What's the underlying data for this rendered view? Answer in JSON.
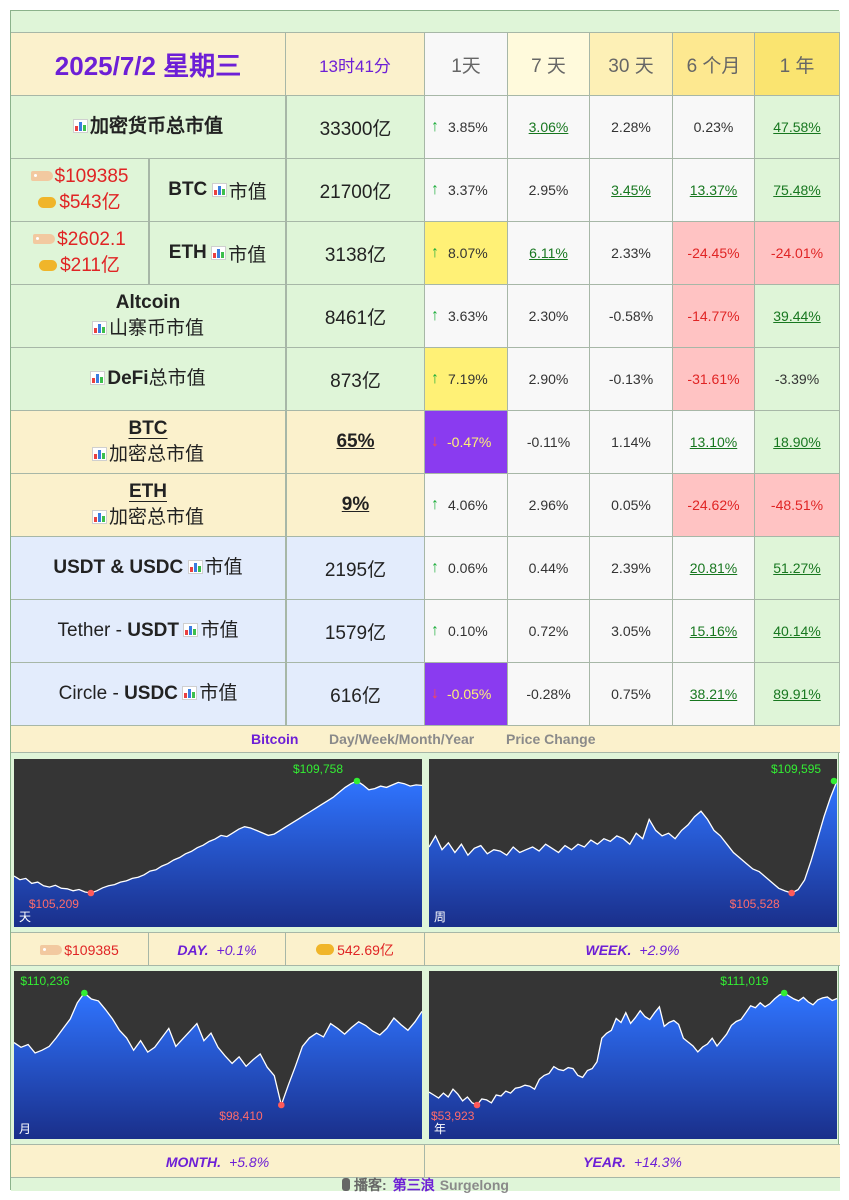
{
  "header": {
    "date": "2025/7/2 星期三",
    "time": "13时41分",
    "periods": [
      "1天",
      "7 天",
      "30 天",
      "6 个月",
      "1 年"
    ]
  },
  "rows": [
    {
      "label": "加密货币总市值",
      "value": "33300亿",
      "up": true,
      "changes": [
        "3.85%",
        "3.06%",
        "2.28%",
        "0.23%",
        "47.58%"
      ]
    },
    {
      "price": "$109385",
      "volume": "$543亿",
      "label": "BTC",
      "label_suffix": "市值",
      "value": "21700亿",
      "up": true,
      "changes": [
        "3.37%",
        "2.95%",
        "3.45%",
        "13.37%",
        "75.48%"
      ]
    },
    {
      "price": "$2602.1",
      "volume": "$211亿",
      "label": "ETH",
      "label_suffix": "市值",
      "value": "3138亿",
      "up": true,
      "changes": [
        "8.07%",
        "6.11%",
        "2.33%",
        "-24.45%",
        "-24.01%"
      ]
    },
    {
      "label": "Altcoin",
      "label2": "山寨币市值",
      "value": "8461亿",
      "up": true,
      "changes": [
        "3.63%",
        "2.30%",
        "-0.58%",
        "-14.77%",
        "39.44%"
      ]
    },
    {
      "label": "DeFi",
      "label_suffix": "总市值",
      "value": "873亿",
      "up": true,
      "changes": [
        "7.19%",
        "2.90%",
        "-0.13%",
        "-31.61%",
        "-3.39%"
      ]
    },
    {
      "label": "BTC",
      "label2": "加密总市值",
      "value": "65%",
      "up": false,
      "changes": [
        "-0.47%",
        "-0.11%",
        "1.14%",
        "13.10%",
        "18.90%"
      ]
    },
    {
      "label": "ETH",
      "label2": "加密总市值",
      "value": "9%",
      "up": true,
      "changes": [
        "4.06%",
        "2.96%",
        "0.05%",
        "-24.62%",
        "-48.51%"
      ]
    },
    {
      "label": "USDT & USDC",
      "label_suffix": "市值",
      "value": "2195亿",
      "up": true,
      "changes": [
        "0.06%",
        "0.44%",
        "2.39%",
        "20.81%",
        "51.27%"
      ]
    },
    {
      "label_pre": "Tether - ",
      "label": "USDT",
      "label_suffix": "市值",
      "value": "1579亿",
      "up": true,
      "changes": [
        "0.10%",
        "0.72%",
        "3.05%",
        "15.16%",
        "40.14%"
      ]
    },
    {
      "label_pre": "Circle - ",
      "label": "USDC",
      "label_suffix": "市值",
      "value": "616亿",
      "up": false,
      "changes": [
        "-0.05%",
        "-0.28%",
        "0.75%",
        "38.21%",
        "89.91%"
      ]
    }
  ],
  "section": {
    "title": "Bitcoin",
    "subtitle": "Day/Week/Month/Year",
    "subtitle2": "Price Change"
  },
  "strip1": {
    "price": "$109385",
    "day": "DAY.",
    "day_change": "+0.1%",
    "volume": "542.69亿",
    "week": "WEEK.",
    "week_change": "+2.9%"
  },
  "strip2": {
    "month": "MONTH.",
    "month_change": "+5.8%",
    "year": "YEAR.",
    "year_change": "+14.3%"
  },
  "footer": {
    "prefix": "播客:",
    "name": "第三浪",
    "brand": "Surgelong"
  },
  "colors": {
    "accent": "#6d1fd6",
    "up_green": "#1eae3c",
    "down_red": "#e02424",
    "neg_bg": "#ffc3c3",
    "hl_yellow": "#fff176",
    "hl_purple": "#8a3bf0"
  },
  "chart_data": [
    {
      "type": "area",
      "name": "天",
      "high_label": "$109,758",
      "low_label": "$105,209",
      "high": 109758,
      "low": 105209,
      "values": [
        105900,
        105750,
        105800,
        105600,
        105650,
        105500,
        105450,
        105520,
        105400,
        105380,
        105300,
        105350,
        105250,
        105209,
        105300,
        105420,
        105500,
        105550,
        105650,
        105700,
        105800,
        105850,
        105950,
        106100,
        106150,
        106300,
        106400,
        106550,
        106650,
        106800,
        106900,
        107050,
        107150,
        107300,
        107400,
        107550,
        107500,
        107650,
        107800,
        107900,
        107850,
        107750,
        107650,
        107550,
        107600,
        107750,
        107900,
        108050,
        108200,
        108350,
        108500,
        108650,
        108800,
        108950,
        109100,
        109300,
        109500,
        109650,
        109758,
        109600,
        109400,
        109450,
        109550,
        109500,
        109600,
        109700,
        109650,
        109550,
        109600,
        109580
      ]
    },
    {
      "type": "area",
      "name": "周",
      "high_label": "$109,595",
      "low_label": "$105,528",
      "high": 109595,
      "low": 105528,
      "values": [
        107200,
        107600,
        107100,
        107350,
        107000,
        107300,
        106900,
        107150,
        107250,
        106950,
        107100,
        107050,
        106900,
        107200,
        107000,
        107100,
        107200,
        107050,
        107300,
        107150,
        107000,
        107250,
        107100,
        107300,
        107200,
        107450,
        107300,
        107500,
        107400,
        107600,
        107500,
        107300,
        107700,
        107500,
        108200,
        107800,
        107600,
        107700,
        107500,
        107800,
        108000,
        108300,
        108500,
        108200,
        107800,
        107600,
        107300,
        107000,
        106800,
        106600,
        106400,
        106300,
        106100,
        105900,
        105700,
        105600,
        105528,
        105650,
        106000,
        106700,
        107500,
        108300,
        109000,
        109595
      ]
    },
    {
      "type": "area",
      "name": "月",
      "high_label": "$110,236",
      "low_label": "$98,410",
      "high": 110236,
      "low": 98410,
      "values": [
        105000,
        104500,
        104800,
        103900,
        104200,
        104600,
        105500,
        106500,
        107500,
        109200,
        110236,
        109600,
        109400,
        108500,
        107500,
        106300,
        105500,
        104200,
        105200,
        104000,
        104500,
        105500,
        106500,
        104600,
        105400,
        106200,
        107000,
        105200,
        106000,
        104500,
        103600,
        102800,
        103500,
        102500,
        103200,
        103800,
        102400,
        101500,
        98410,
        100500,
        102500,
        104600,
        105500,
        106000,
        105600,
        107000,
        106500,
        105900,
        106600,
        107200,
        106800,
        106200,
        105800,
        106500,
        107600,
        106900,
        106300,
        107200,
        108300
      ]
    },
    {
      "type": "area",
      "name": "年",
      "high_label": "$111,019",
      "low_label": "$53,923",
      "high": 111019,
      "low": 53923,
      "values": [
        60500,
        59000,
        57500,
        60000,
        58000,
        62000,
        59500,
        56000,
        58000,
        55000,
        53923,
        57000,
        56500,
        55000,
        59000,
        58500,
        61000,
        60000,
        62500,
        63000,
        64000,
        63500,
        62000,
        67000,
        69000,
        70000,
        73500,
        72000,
        71500,
        73000,
        72500,
        69000,
        68000,
        71500,
        72500,
        76000,
        88000,
        90500,
        92000,
        98000,
        96000,
        101000,
        95500,
        98500,
        102000,
        99000,
        97500,
        101000,
        104000,
        94000,
        96000,
        97000,
        95000,
        88000,
        86000,
        84000,
        81000,
        83500,
        85000,
        88000,
        84000,
        87000,
        90000,
        94500,
        96500,
        97500,
        101000,
        104500,
        103500,
        106000,
        104000,
        105500,
        108000,
        110000,
        111019,
        109500,
        108000,
        107000,
        108800,
        106500,
        105000,
        107500,
        108500,
        109000,
        107200,
        108200
      ]
    }
  ]
}
